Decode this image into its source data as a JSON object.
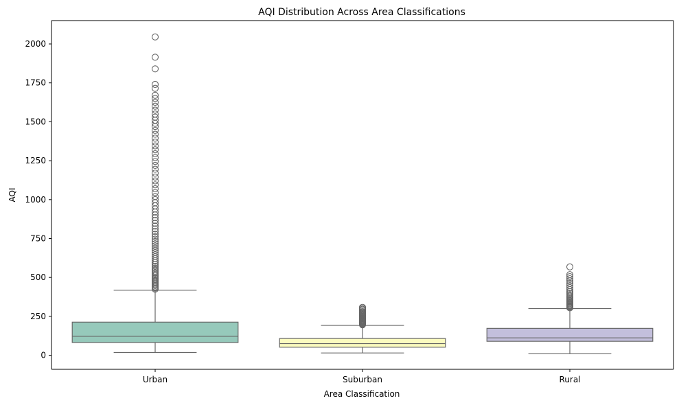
{
  "chart_data": {
    "type": "box",
    "title": "AQI Distribution Across Area Classifications",
    "xlabel": "Area Classification",
    "ylabel": "AQI",
    "ylim": [
      -90,
      2150
    ],
    "yticks": [
      0,
      250,
      500,
      750,
      1000,
      1250,
      1500,
      1750,
      2000
    ],
    "ytick_labels": [
      "0",
      "250",
      "500",
      "750",
      "1000",
      "1250",
      "1500",
      "1750",
      "2000"
    ],
    "grid": false,
    "box_edge_color": "#666666",
    "categories": [
      "Urban",
      "Suburban",
      "Rural"
    ],
    "series": [
      {
        "category": "Urban",
        "color": "#96c9bb",
        "whisker_low": 18,
        "q1": 82,
        "median": 122,
        "q3": 213,
        "whisker_high": 418,
        "outliers": [
          425,
          432,
          440,
          448,
          455,
          463,
          470,
          478,
          486,
          494,
          502,
          511,
          520,
          530,
          540,
          550,
          561,
          572,
          583,
          595,
          607,
          620,
          633,
          646,
          660,
          674,
          688,
          702,
          716,
          731,
          746,
          762,
          778,
          795,
          812,
          830,
          848,
          866,
          884,
          902,
          920,
          940,
          960,
          980,
          1000,
          1020,
          1045,
          1070,
          1095,
          1120,
          1145,
          1170,
          1195,
          1220,
          1245,
          1270,
          1295,
          1320,
          1345,
          1370,
          1395,
          1420,
          1445,
          1470,
          1490,
          1510,
          1530,
          1550,
          1575,
          1600,
          1625,
          1650,
          1670,
          1715,
          1740,
          1840,
          1915,
          2045
        ]
      },
      {
        "category": "Suburban",
        "color": "#fbfbbf",
        "whisker_low": 15,
        "q1": 52,
        "median": 75,
        "q3": 108,
        "whisker_high": 192,
        "outliers": [
          196,
          200,
          204,
          208,
          212,
          216,
          220,
          224,
          228,
          232,
          236,
          240,
          245,
          250,
          255,
          260,
          265,
          270,
          275,
          280,
          288,
          295,
          302,
          308
        ]
      },
      {
        "category": "Rural",
        "color": "#c3bfdc",
        "whisker_low": 10,
        "q1": 90,
        "median": 112,
        "q3": 173,
        "whisker_high": 300,
        "outliers": [
          305,
          310,
          315,
          320,
          326,
          332,
          338,
          344,
          350,
          357,
          364,
          372,
          380,
          390,
          400,
          410,
          422,
          435,
          448,
          462,
          478,
          492,
          505,
          518,
          568
        ]
      }
    ]
  }
}
